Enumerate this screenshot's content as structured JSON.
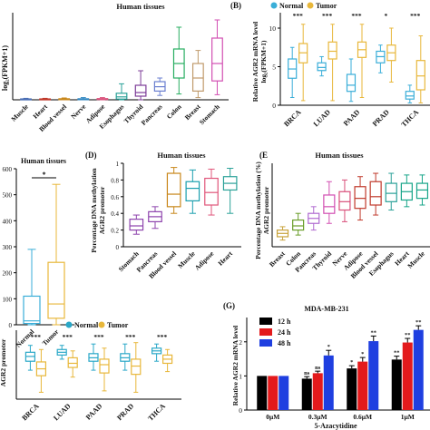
{
  "chart_data": [
    {
      "id": "A",
      "type": "box",
      "title": "Human tissues",
      "ylabel": "log2(FPKM+1)",
      "ylim": [
        0,
        12
      ],
      "yticks": [],
      "categories": [
        "Muscle",
        "Heart",
        "Blood vessel",
        "Nerve",
        "Adipose",
        "Esophagus",
        "Thyroid",
        "Pancreas",
        "Colon",
        "Breast",
        "Stomach"
      ],
      "colors": [
        "#4a6fb5",
        "#c0392b",
        "#c8871a",
        "#2e86c1",
        "#d94f7a",
        "#2aa198",
        "#7d3c98",
        "#6a7fd0",
        "#27ae60",
        "#c09a6b",
        "#d24fb2"
      ],
      "boxes": [
        {
          "min": 0.0,
          "q1": 0.05,
          "median": 0.08,
          "q3": 0.12,
          "max": 0.2
        },
        {
          "min": 0.0,
          "q1": 0.05,
          "median": 0.08,
          "q3": 0.12,
          "max": 0.2
        },
        {
          "min": 0.0,
          "q1": 0.05,
          "median": 0.09,
          "q3": 0.14,
          "max": 0.25
        },
        {
          "min": 0.0,
          "q1": 0.05,
          "median": 0.09,
          "q3": 0.14,
          "max": 0.3
        },
        {
          "min": 0.0,
          "q1": 0.05,
          "median": 0.1,
          "q3": 0.16,
          "max": 0.3
        },
        {
          "min": 0.0,
          "q1": 0.1,
          "median": 0.4,
          "q3": 0.9,
          "max": 2.2
        },
        {
          "min": 0.0,
          "q1": 0.5,
          "median": 1.0,
          "q3": 2.0,
          "max": 4.0
        },
        {
          "min": 0.6,
          "q1": 1.2,
          "median": 1.8,
          "q3": 2.5,
          "max": 3.0
        },
        {
          "min": 0.8,
          "q1": 3.0,
          "median": 5.0,
          "q3": 7.0,
          "max": 10.0
        },
        {
          "min": 0.3,
          "q1": 1.2,
          "median": 3.0,
          "q3": 5.0,
          "max": 6.8
        },
        {
          "min": 0.7,
          "q1": 2.6,
          "median": 5.0,
          "q3": 8.5,
          "max": 11.0
        }
      ]
    },
    {
      "id": "B",
      "type": "box",
      "title": "",
      "ylabel": "Relative AGR2 mRNA level log2(FPKM+1)",
      "ylim": [
        0,
        12
      ],
      "yticks": [
        0,
        5,
        10
      ],
      "categories": [
        "BRCA",
        "LUAD",
        "PAAD",
        "PRAD",
        "THCA"
      ],
      "legend": [
        "Normal",
        "Tumor"
      ],
      "series_colors": [
        "#3aaed8",
        "#e8b73a"
      ],
      "significance": [
        "***",
        "***",
        "***",
        "*",
        "***"
      ],
      "boxes_normal": [
        {
          "min": 1.0,
          "q1": 3.5,
          "median": 4.7,
          "q3": 6.0,
          "max": 7.5
        },
        {
          "min": 3.8,
          "q1": 4.5,
          "median": 4.9,
          "q3": 5.5,
          "max": 6.3
        },
        {
          "min": 0.5,
          "q1": 1.8,
          "median": 2.6,
          "q3": 4.0,
          "max": 6.0
        },
        {
          "min": 4.2,
          "q1": 5.5,
          "median": 6.3,
          "q3": 7.0,
          "max": 7.8
        },
        {
          "min": 0.3,
          "q1": 0.8,
          "median": 1.2,
          "q3": 1.8,
          "max": 2.6
        }
      ],
      "boxes_tumor": [
        {
          "min": 0.6,
          "q1": 5.5,
          "median": 6.8,
          "q3": 8.0,
          "max": 10.5
        },
        {
          "min": 0.6,
          "q1": 6.0,
          "median": 7.0,
          "q3": 8.2,
          "max": 10.5
        },
        {
          "min": 1.0,
          "q1": 6.2,
          "median": 7.2,
          "q3": 8.2,
          "max": 10.5
        },
        {
          "min": 3.0,
          "q1": 5.8,
          "median": 6.8,
          "q3": 7.8,
          "max": 10.0
        },
        {
          "min": 0.3,
          "q1": 2.0,
          "median": 3.8,
          "q3": 5.8,
          "max": 9.0
        }
      ]
    },
    {
      "id": "C",
      "type": "box",
      "title": "Human tissues",
      "ylabel": "",
      "ylim": [
        0,
        600
      ],
      "yticks": [
        0,
        100,
        200,
        300,
        400,
        500,
        600
      ],
      "categories": [
        "Normal",
        "Tumor"
      ],
      "colors": [
        "#3aaed8",
        "#e8b73a"
      ],
      "significance": "*",
      "boxes": [
        {
          "min": 0,
          "q1": 5,
          "median": 15,
          "q3": 110,
          "max": 290
        },
        {
          "min": 0,
          "q1": 25,
          "median": 80,
          "q3": 240,
          "max": 540
        }
      ]
    },
    {
      "id": "D",
      "type": "box",
      "title": "Human tissues",
      "ylabel": "Percentage DNA methylation AGR2 promoter",
      "ylim": [
        0.0,
        1.0
      ],
      "yticks": [
        0.0,
        0.2,
        0.4,
        0.6,
        0.8,
        1.0
      ],
      "categories": [
        "Stomach",
        "Pancreas",
        "Blood vessel",
        "Muscle",
        "Adipose",
        "Heart"
      ],
      "colors": [
        "#8e44ad",
        "#8e44ad",
        "#c8871a",
        "#1a9fae",
        "#e0557a",
        "#2aa198"
      ],
      "boxes": [
        {
          "min": 0.15,
          "q1": 0.2,
          "median": 0.25,
          "q3": 0.33,
          "max": 0.38
        },
        {
          "min": 0.22,
          "q1": 0.3,
          "median": 0.36,
          "q3": 0.42,
          "max": 0.48
        },
        {
          "min": 0.4,
          "q1": 0.48,
          "median": 0.63,
          "q3": 0.88,
          "max": 0.95
        },
        {
          "min": 0.4,
          "q1": 0.55,
          "median": 0.7,
          "q3": 0.78,
          "max": 0.92
        },
        {
          "min": 0.38,
          "q1": 0.5,
          "median": 0.65,
          "q3": 0.82,
          "max": 0.93
        },
        {
          "min": 0.4,
          "q1": 0.68,
          "median": 0.76,
          "q3": 0.84,
          "max": 0.94
        }
      ]
    },
    {
      "id": "E",
      "type": "box",
      "title": "Human tissues",
      "ylabel": "Percentage DNA methylation AGR2 promoter",
      "ylim": [
        0.0,
        1.0
      ],
      "yticks": [],
      "categories": [
        "Breast",
        "Colon",
        "Pancreas",
        "Thyroid",
        "Nerve",
        "Adipose",
        "Blood vessel",
        "Esophagus",
        "Heart",
        "Muscle"
      ],
      "colors": [
        "#c8a23a",
        "#6a9e2a",
        "#b06ad0",
        "#d24fb2",
        "#d94f7a",
        "#c0392b",
        "#c0392b",
        "#2aa198",
        "#17a589",
        "#17a589"
      ],
      "boxes": [
        {
          "min": 0.08,
          "q1": 0.12,
          "median": 0.16,
          "q3": 0.2,
          "max": 0.24
        },
        {
          "min": 0.14,
          "q1": 0.2,
          "median": 0.25,
          "q3": 0.32,
          "max": 0.4
        },
        {
          "min": 0.2,
          "q1": 0.28,
          "median": 0.34,
          "q3": 0.4,
          "max": 0.48
        },
        {
          "min": 0.28,
          "q1": 0.4,
          "median": 0.48,
          "q3": 0.62,
          "max": 0.78
        },
        {
          "min": 0.3,
          "q1": 0.44,
          "median": 0.54,
          "q3": 0.66,
          "max": 0.8
        },
        {
          "min": 0.32,
          "q1": 0.46,
          "median": 0.58,
          "q3": 0.72,
          "max": 0.84
        },
        {
          "min": 0.38,
          "q1": 0.5,
          "median": 0.6,
          "q3": 0.78,
          "max": 0.88
        },
        {
          "min": 0.44,
          "q1": 0.54,
          "median": 0.64,
          "q3": 0.76,
          "max": 0.88
        },
        {
          "min": 0.48,
          "q1": 0.56,
          "median": 0.66,
          "q3": 0.76,
          "max": 0.86
        },
        {
          "min": 0.5,
          "q1": 0.58,
          "median": 0.68,
          "q3": 0.76,
          "max": 0.86
        }
      ]
    },
    {
      "id": "F",
      "type": "box",
      "title": "",
      "ylabel": "AGR2 promoter",
      "ylim": [
        0.0,
        1.0
      ],
      "yticks": [],
      "categories": [
        "BRCA",
        "LUAD",
        "PAAD",
        "PRAD",
        "THCA"
      ],
      "legend": [
        "Normal",
        "Tumor"
      ],
      "series_colors": [
        "#2aa8c8",
        "#e8b73a"
      ],
      "significance": [
        "***",
        "***",
        "***",
        "***",
        "***"
      ],
      "boxes_normal": [
        {
          "min": 0.42,
          "q1": 0.55,
          "median": 0.62,
          "q3": 0.68,
          "max": 0.78
        },
        {
          "min": 0.58,
          "q1": 0.64,
          "median": 0.68,
          "q3": 0.72,
          "max": 0.78
        },
        {
          "min": 0.42,
          "q1": 0.55,
          "median": 0.6,
          "q3": 0.66,
          "max": 0.8
        },
        {
          "min": 0.42,
          "q1": 0.55,
          "median": 0.6,
          "q3": 0.66,
          "max": 0.8
        },
        {
          "min": 0.55,
          "q1": 0.66,
          "median": 0.7,
          "q3": 0.74,
          "max": 0.8
        }
      ],
      "boxes_tumor": [
        {
          "min": 0.1,
          "q1": 0.34,
          "median": 0.44,
          "q3": 0.54,
          "max": 0.72
        },
        {
          "min": 0.32,
          "q1": 0.46,
          "median": 0.52,
          "q3": 0.6,
          "max": 0.7
        },
        {
          "min": 0.12,
          "q1": 0.38,
          "median": 0.5,
          "q3": 0.58,
          "max": 0.74
        },
        {
          "min": 0.1,
          "q1": 0.36,
          "median": 0.48,
          "q3": 0.58,
          "max": 0.82
        },
        {
          "min": 0.4,
          "q1": 0.52,
          "median": 0.58,
          "q3": 0.64,
          "max": 0.72
        }
      ]
    },
    {
      "id": "G",
      "type": "bar",
      "title": "MDA-MB-231",
      "xlabel": "5-Azacytidine",
      "ylabel": "Relative AGR2 mRNA level",
      "ylim": [
        0,
        2.5
      ],
      "yticks": [
        0,
        1,
        2
      ],
      "categories": [
        "0μM",
        "0.3μM",
        "0.6μM",
        "1μM"
      ],
      "legend_position": "top-left",
      "series": [
        {
          "name": "12 h",
          "color": "#000000",
          "values": [
            1.0,
            0.92,
            1.22,
            1.48
          ],
          "errors": [
            0.0,
            0.06,
            0.08,
            0.1
          ],
          "sig": [
            "",
            "ns",
            "*",
            "**"
          ]
        },
        {
          "name": "24 h",
          "color": "#e31a1c",
          "values": [
            1.0,
            1.08,
            1.42,
            1.98
          ],
          "errors": [
            0.0,
            0.06,
            0.12,
            0.12
          ],
          "sig": [
            "",
            "ns",
            "*",
            "**"
          ]
        },
        {
          "name": "48 h",
          "color": "#1f3fe0",
          "values": [
            1.0,
            1.6,
            2.02,
            2.35
          ],
          "errors": [
            0.0,
            0.15,
            0.15,
            0.12
          ],
          "sig": [
            "",
            "*",
            "**",
            "**"
          ]
        }
      ]
    }
  ],
  "labels": {
    "A_title": "Human tissues",
    "A_ylabel": "log₂(FPKM+1)",
    "B_panel": "(B)",
    "B_ylabel_1": "Relative AGR2 mRNA level",
    "B_ylabel_2": "log₂(FPKM+1)",
    "B_legend_normal": "Normal",
    "B_legend_tumor": "Tumor",
    "C_title": "Human tissues",
    "D_panel": "(D)",
    "D_title": "Human tissues",
    "D_ylabel_1": "Percentage DNA methylation",
    "D_ylabel_2": "AGR2 promoter",
    "E_panel": "(E",
    "E_title": "Human tissues",
    "E_ylabel_1": "Percentage DNA methylation (%)",
    "E_ylabel_2": "AGR2 promoter",
    "F_legend_normal": "Normal",
    "F_legend_tumor": "Tumor",
    "F_ylabel": "AGR2 promoter",
    "G_panel": "(G)",
    "G_title": "MDA-MB-231",
    "G_ylabel": "Relative AGR2 mRNA level",
    "G_xlabel": "5-Azacytidine"
  }
}
